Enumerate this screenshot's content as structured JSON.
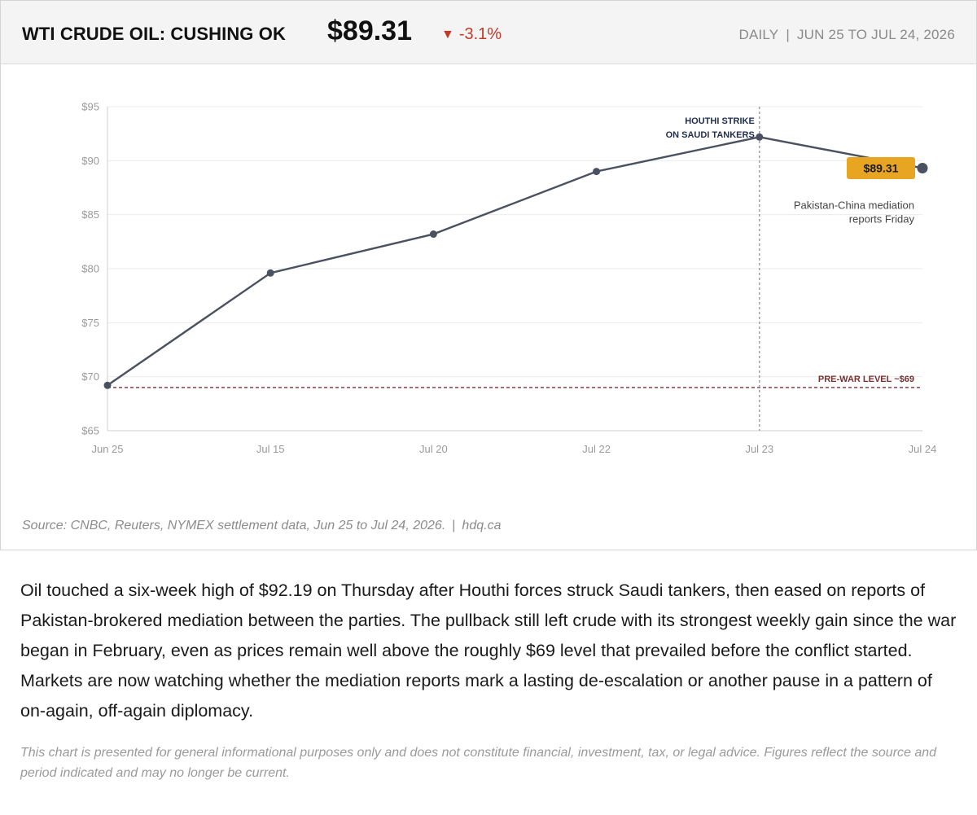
{
  "header": {
    "title": "WTI CRUDE OIL: CUSHING OK",
    "price": "$89.31",
    "change_arrow": "▼",
    "change": "-3.1%",
    "frequency": "DAILY",
    "separator": "|",
    "range": "JUN 25 TO JUL 24, 2026"
  },
  "colors": {
    "line": "#4a5160",
    "grid": "#ebebeb",
    "axis": "#cfcfcf",
    "tick_text": "#9a9a9a",
    "prewar": "#7a2e2e",
    "event_label": "#1f2d4f",
    "badge_bg": "#e8a521",
    "down": "#c0392b"
  },
  "chart_data": {
    "type": "line",
    "categories": [
      "Jun 25",
      "Jul 15",
      "Jul 20",
      "Jul 22",
      "Jul 23",
      "Jul 24"
    ],
    "series": [
      {
        "values": [
          69.2,
          79.6,
          83.2,
          89.0,
          92.19,
          89.31
        ]
      }
    ],
    "ylim": [
      65,
      95
    ],
    "yticks": [
      65,
      70,
      75,
      80,
      85,
      90,
      95
    ],
    "ytick_labels": [
      "$65",
      "$70",
      "$75",
      "$80",
      "$85",
      "$90",
      "$95"
    ],
    "grid": true,
    "reference_line": {
      "value": 69,
      "label": "PRE-WAR LEVEL ~$69"
    },
    "event_marker": {
      "category": "Jul 23",
      "label_lines": [
        "HOUTHI STRIKE",
        "ON SAUDI TANKERS"
      ]
    },
    "last_value_badge": "$89.31",
    "annotation_lines": [
      "Pakistan-China mediation",
      "reports Friday"
    ]
  },
  "footer": {
    "source": "Source: CNBC, Reuters, NYMEX settlement data, Jun 25 to Jul 24, 2026.",
    "separator": "|",
    "site": "hdq.ca"
  },
  "article": {
    "paragraph": "Oil touched a six-week high of $92.19 on Thursday after Houthi forces struck Saudi tankers, then eased on reports of Pakistan-brokered mediation between the parties. The pullback still left crude with its strongest weekly gain since the war began in February, even as prices remain well above the roughly $69 level that prevailed before the conflict started. Markets are now watching whether the mediation reports mark a lasting de-escalation or another pause in a pattern of on-again, off-again diplomacy.",
    "disclaimer": "This chart is presented for general informational purposes only and does not constitute financial, investment, tax, or legal advice. Figures reflect the source and period indicated and may no longer be current."
  }
}
